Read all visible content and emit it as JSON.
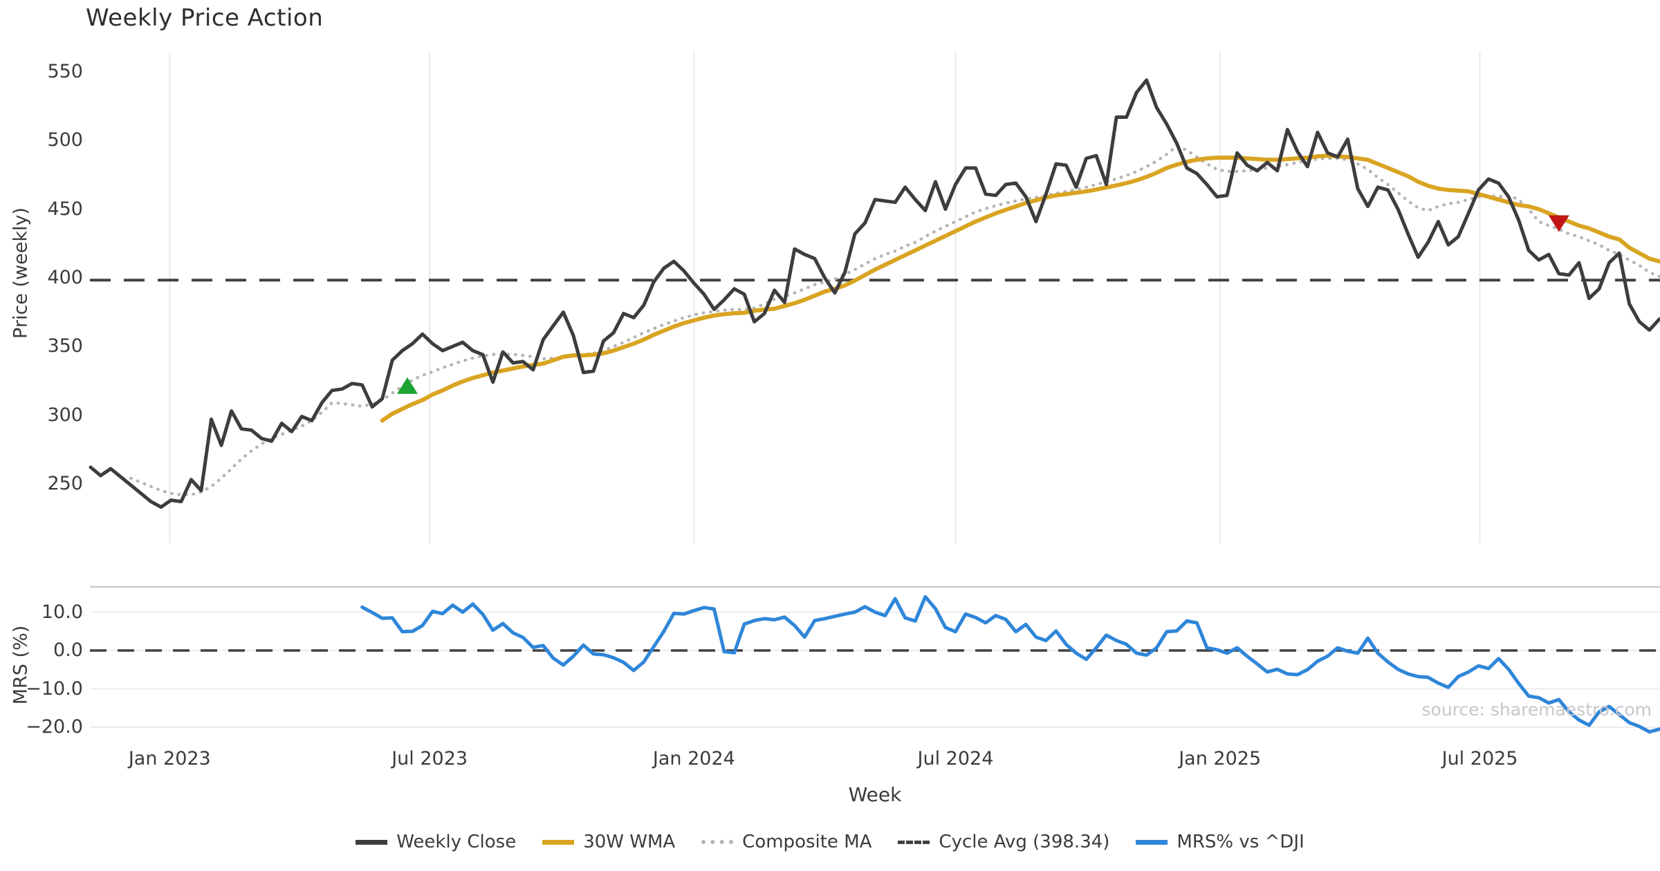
{
  "chart_data": {
    "type": "line",
    "title": "Weekly Price Action",
    "source_note": "source: sharemaestro.com",
    "x_axis": {
      "label": "Week",
      "unit": "weeks",
      "start_date": "2022-11-07",
      "total_weeks": 156,
      "ticks": [
        {
          "week": 7.86,
          "label": "Jan 2023"
        },
        {
          "week": 33.71,
          "label": "Jul 2023"
        },
        {
          "week": 60.0,
          "label": "Jan 2024"
        },
        {
          "week": 86.0,
          "label": "Jul 2024"
        },
        {
          "week": 112.29,
          "label": "Jan 2025"
        },
        {
          "week": 138.14,
          "label": "Jul 2025"
        }
      ]
    },
    "panels": [
      {
        "id": "price",
        "ylabel": "Price (weekly)",
        "ylim": [
          210,
          565
        ],
        "yticks": [
          {
            "v": 250,
            "label": "250"
          },
          {
            "v": 300,
            "label": "300"
          },
          {
            "v": 350,
            "label": "350"
          },
          {
            "v": 400,
            "label": "400"
          },
          {
            "v": 450,
            "label": "450"
          },
          {
            "v": 500,
            "label": "500"
          },
          {
            "v": 550,
            "label": "550"
          }
        ],
        "series": [
          {
            "name": "Weekly Close",
            "style": "solid",
            "color": "#3d3d3d",
            "width": 5,
            "start_week": 0,
            "values": [
              262,
              256,
              261,
              255,
              249,
              243,
              237,
              233,
              238,
              237,
              253,
              245,
              297,
              278,
              303,
              290,
              289,
              283,
              281,
              294,
              288,
              299,
              296,
              309,
              318,
              319,
              323,
              322,
              306,
              312,
              340,
              347,
              352,
              359,
              352,
              347,
              350,
              353,
              347,
              344,
              324,
              346,
              338,
              339,
              333,
              355,
              365,
              375,
              358,
              331,
              332,
              354,
              360,
              374,
              371,
              380,
              397,
              407,
              412,
              405,
              396,
              388,
              377,
              384,
              392,
              388,
              368,
              374,
              391,
              382,
              421,
              417,
              414,
              400,
              389,
              404,
              432,
              440,
              457,
              456,
              455,
              466,
              457,
              449,
              470,
              450,
              468,
              480,
              480,
              461,
              460,
              468,
              469,
              459,
              441,
              461,
              483,
              482,
              466,
              487,
              489,
              468,
              517,
              517,
              535,
              544,
              524,
              512,
              498,
              480,
              476,
              468,
              459,
              460,
              491,
              482,
              478,
              484,
              478,
              508,
              492,
              481,
              506,
              491,
              488,
              501,
              465,
              452,
              466,
              464,
              450,
              432,
              415,
              426,
              441,
              424,
              430,
              447,
              464,
              472,
              469,
              459,
              442,
              420,
              413,
              417,
              403,
              402,
              411,
              385,
              392,
              411,
              418,
              381,
              368,
              362,
              370
            ]
          },
          {
            "name": "30W WMA",
            "style": "solid",
            "color": "#d9a421",
            "width": 6,
            "start_week": 29,
            "values": [
              296,
              301,
              304.5,
              308,
              311,
              315,
              318,
              321.5,
              324.5,
              327,
              329,
              331,
              332.5,
              334,
              335.5,
              336.5,
              337.5,
              340,
              342.5,
              343.5,
              343.5,
              344,
              345,
              347,
              349.5,
              352,
              355,
              358.5,
              361.5,
              364.5,
              367,
              369,
              371,
              372.5,
              373.5,
              374.2,
              374.5,
              376,
              377,
              377.5,
              379.5,
              381.5,
              384,
              387,
              390,
              392,
              394.5,
              398,
              402,
              406,
              409.5,
              413,
              416.5,
              420,
              423.5,
              427,
              430.5,
              434,
              437.5,
              441,
              444,
              447,
              449.5,
              452,
              454.5,
              456.5,
              458.5,
              460,
              461,
              462,
              463,
              464.3,
              465.8,
              467.3,
              469,
              471,
              473.5,
              476.5,
              480,
              482.5,
              484.5,
              486,
              487,
              487.5,
              487.5,
              487.5,
              487,
              486.5,
              486,
              486,
              486.5,
              487,
              487.5,
              488.5,
              489,
              488.5,
              488,
              487,
              486,
              483,
              480,
              477,
              474,
              470,
              467,
              465,
              464,
              463.5,
              463,
              461,
              459,
              457,
              455,
              453,
              452,
              450,
              447,
              444,
              441,
              438,
              436,
              433,
              430,
              428,
              422,
              418,
              414,
              412
            ]
          },
          {
            "name": "Composite MA",
            "style": "dotted",
            "color": "#b5b5b5",
            "width": 4.5,
            "start_week": 4,
            "values": [
              254,
              251,
              248,
              245,
              243,
              242,
              242,
              244,
              248,
              254,
              261,
              268,
              274,
              279,
              283,
              286,
              289,
              292,
              296,
              302,
              309,
              308.5,
              307.5,
              306.5,
              308,
              311,
              316,
              321,
              325.5,
              329,
              331.5,
              334.5,
              337,
              339.5,
              341.5,
              343,
              344.2,
              344.4,
              344.2,
              343.5,
              342.5,
              341,
              341.5,
              342,
              343,
              344,
              345,
              347,
              350,
              353,
              356.5,
              360,
              363,
              366,
              368.5,
              371,
              373,
              374.5,
              375.5,
              376.5,
              377,
              377,
              378,
              381,
              384.5,
              386.5,
              389,
              392,
              395,
              397,
              399,
              402.5,
              406,
              410,
              414,
              417,
              419.5,
              423,
              426,
              430,
              434,
              437.5,
              441,
              444.5,
              448,
              450.5,
              452.5,
              454.5,
              456,
              457.5,
              458.5,
              460,
              461.5,
              463,
              464.5,
              466,
              468,
              470,
              472,
              474.5,
              477.5,
              481,
              485,
              490,
              496,
              493,
              488,
              483,
              479,
              477.5,
              477.5,
              478,
              479,
              480,
              481,
              482.5,
              484,
              485.5,
              486.5,
              487,
              487,
              486,
              483,
              479,
              473,
              468,
              462,
              456,
              451,
              449,
              452,
              454,
              455,
              457,
              459,
              460,
              459,
              460,
              457,
              450,
              441,
              438,
              435.5,
              432,
              430,
              427,
              424,
              420,
              417,
              413,
              409,
              404,
              401
            ]
          },
          {
            "name": "Cycle Avg (398.34)",
            "type": "hline",
            "value": 398.34,
            "style": "dashed",
            "color": "#404040",
            "width": 4
          }
        ],
        "markers": [
          {
            "shape": "triangle-up",
            "color": "#1da332",
            "week": 31.5,
            "value": 321,
            "meaning": "buy-signal"
          },
          {
            "shape": "triangle-down",
            "color": "#c21616",
            "week": 146,
            "value": 440,
            "meaning": "sell-signal"
          }
        ]
      },
      {
        "id": "mrs",
        "ylabel": "MRS (%)",
        "ylim": [
          -22.9,
          16.6
        ],
        "yticks": [
          {
            "v": 10,
            "label": "10.0"
          },
          {
            "v": 0,
            "label": "0.0"
          },
          {
            "v": -10,
            "label": "−10.0"
          },
          {
            "v": -20,
            "label": "−20.0"
          }
        ],
        "zero_line": {
          "style": "dashed",
          "color": "#404040"
        },
        "series": [
          {
            "name": "MRS% vs ^DJI",
            "style": "solid",
            "color": "#2e86d9",
            "width": 5,
            "start_week": 27,
            "values": [
              11.3,
              9.9,
              8.4,
              8.5,
              4.9,
              5.0,
              6.5,
              10.2,
              9.6,
              11.8,
              10.0,
              12.1,
              9.4,
              5.3,
              7.0,
              4.6,
              3.4,
              0.8,
              1.3,
              -2.0,
              -3.8,
              -1.5,
              1.4,
              -0.9,
              -1.1,
              -1.9,
              -3.1,
              -5.2,
              -3.0,
              1.0,
              5.0,
              9.7,
              9.5,
              10.4,
              11.2,
              10.8,
              -0.3,
              -0.6,
              6.9,
              7.8,
              8.3,
              8.0,
              8.7,
              6.5,
              3.5,
              7.8,
              8.3,
              8.9,
              9.5,
              10.0,
              11.4,
              10.0,
              9.1,
              13.5,
              8.5,
              7.7,
              14.0,
              10.9,
              6.0,
              4.9,
              9.5,
              8.6,
              7.2,
              9.1,
              8.1,
              4.9,
              6.8,
              3.5,
              2.6,
              5.1,
              1.6,
              -0.7,
              -2.3,
              0.7,
              4.0,
              2.6,
              1.6,
              -0.7,
              -1.2,
              0.7,
              4.9,
              5.1,
              7.7,
              7.2,
              0.7,
              0.2,
              -0.7,
              0.7,
              -1.5,
              -3.5,
              -5.6,
              -4.9,
              -6.1,
              -6.3,
              -5.0,
              -2.8,
              -1.5,
              0.7,
              -0.2,
              -0.7,
              3.2,
              -0.7,
              -3.0,
              -4.9,
              -6.1,
              -6.8,
              -7.0,
              -8.5,
              -9.6,
              -6.8,
              -5.6,
              -4.0,
              -4.7,
              -2.1,
              -4.9,
              -8.6,
              -11.9,
              -12.3,
              -13.7,
              -12.8,
              -16.0,
              -18.1,
              -19.5,
              -16.0,
              -14.6,
              -16.7,
              -18.8,
              -19.8,
              -21.2,
              -20.5
            ]
          }
        ]
      }
    ],
    "legend": [
      {
        "label": "Weekly Close",
        "swatch": "solid",
        "color": "#3d3d3d"
      },
      {
        "label": "30W WMA",
        "swatch": "solid",
        "color": "#d9a421"
      },
      {
        "label": "Composite MA",
        "swatch": "dotted",
        "color": "#b5b5b5"
      },
      {
        "label": "Cycle Avg (398.34)",
        "swatch": "dashed",
        "color": "#404040"
      },
      {
        "label": "MRS% vs ^DJI",
        "swatch": "solid",
        "color": "#2e86d9"
      }
    ],
    "style": {
      "background": "#ffffff",
      "grid_vertical_color": "#e8e9f0",
      "grid_horizontal_color": "#ececec",
      "panel_spine_color": "#c9c9c9",
      "tick_label_color": "#3b3b3b",
      "title_color": "#2e2e2e",
      "source_color": "#c3c7cc"
    }
  }
}
